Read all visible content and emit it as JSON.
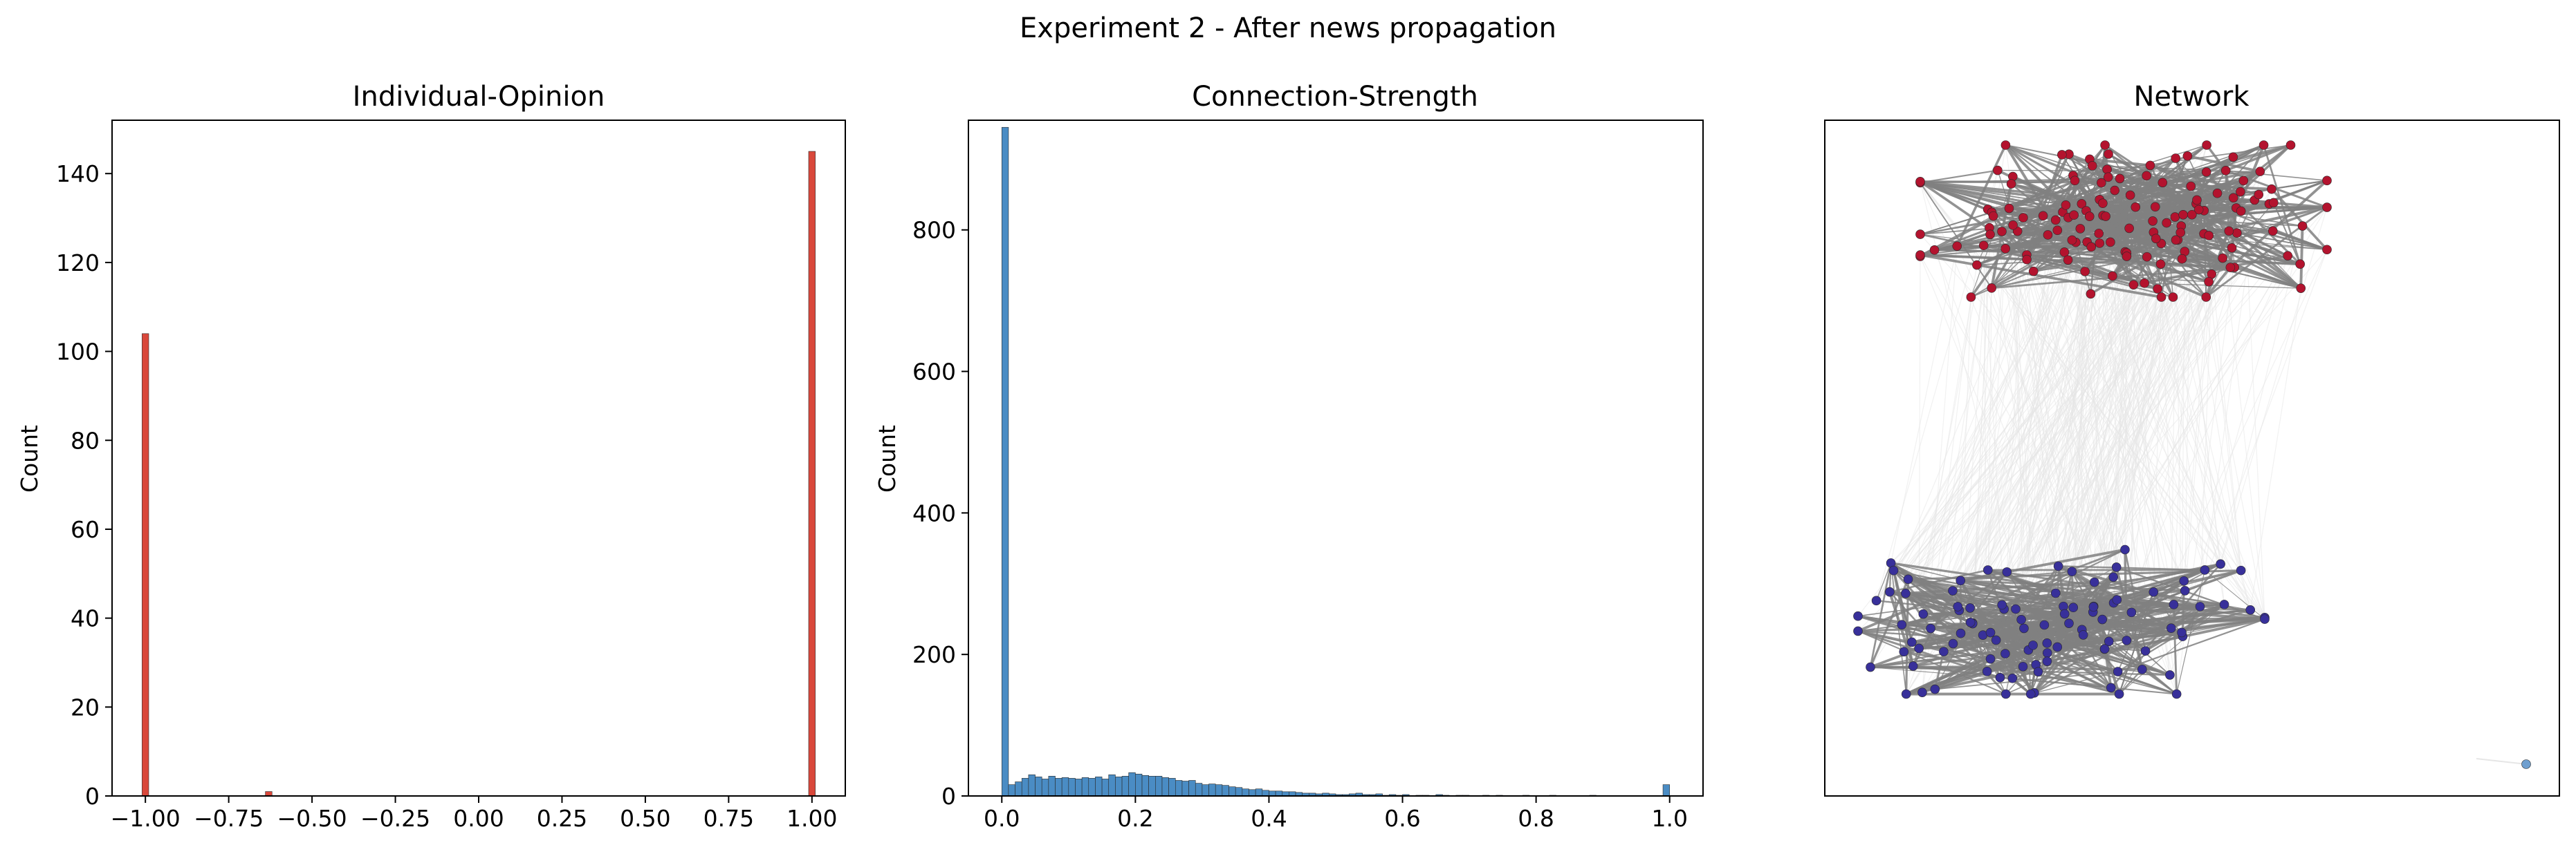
{
  "figure": {
    "suptitle": "Experiment 2 - After news propagation"
  },
  "chart_data": [
    {
      "type": "bar",
      "title": "Individual-Opinion",
      "xlabel": "",
      "ylabel": "Count",
      "xlim": [
        -1.1,
        1.1
      ],
      "ylim": [
        0,
        152
      ],
      "xticks": [
        -1.0,
        -0.75,
        -0.5,
        -0.25,
        0.0,
        0.25,
        0.5,
        0.75,
        1.0
      ],
      "xtick_labels": [
        "−1.00",
        "−0.75",
        "−0.50",
        "−0.25",
        "0.00",
        "0.25",
        "0.50",
        "0.75",
        "1.00"
      ],
      "yticks": [
        0,
        20,
        40,
        60,
        80,
        100,
        120,
        140
      ],
      "bin_width": 0.02,
      "bins": [
        {
          "x": -1.0,
          "count": 104
        },
        {
          "x": -0.63,
          "count": 1
        },
        {
          "x": 1.0,
          "count": 145
        }
      ],
      "color": "#d9483b",
      "grid": false
    },
    {
      "type": "bar",
      "title": "Connection-Strength",
      "xlabel": "",
      "ylabel": "Count",
      "xlim": [
        -0.05,
        1.05
      ],
      "ylim": [
        0,
        955
      ],
      "xticks": [
        0.0,
        0.2,
        0.4,
        0.6,
        0.8,
        1.0
      ],
      "xtick_labels": [
        "0.0",
        "0.2",
        "0.4",
        "0.6",
        "0.8",
        "1.0"
      ],
      "yticks": [
        0,
        200,
        400,
        600,
        800
      ],
      "bin_width": 0.01,
      "bin_start": 0.0,
      "counts": [
        945,
        16,
        20,
        25,
        30,
        27,
        24,
        28,
        25,
        26,
        25,
        24,
        26,
        25,
        27,
        24,
        30,
        27,
        28,
        33,
        31,
        29,
        28,
        28,
        26,
        25,
        22,
        21,
        22,
        18,
        16,
        17,
        16,
        15,
        13,
        12,
        10,
        9,
        10,
        8,
        7,
        7,
        6,
        6,
        5,
        4,
        4,
        3,
        4,
        3,
        2,
        2,
        3,
        4,
        2,
        2,
        3,
        1,
        2,
        1,
        2,
        0,
        1,
        1,
        0,
        2,
        1,
        0,
        1,
        1,
        0,
        0,
        1,
        0,
        1,
        0,
        0,
        0,
        1,
        0,
        0,
        0,
        1,
        0,
        0,
        0,
        0,
        0,
        1,
        0,
        0,
        0,
        0,
        0,
        0,
        0,
        0,
        0,
        0,
        16
      ],
      "color": "#4a8cc4",
      "grid": false
    },
    {
      "type": "network",
      "title": "Network",
      "clusters": [
        {
          "opinion": 1,
          "nodes": 145,
          "color": "#b3132e"
        },
        {
          "opinion": -1,
          "nodes": 104,
          "color": "#38309a"
        },
        {
          "opinion": -0.63,
          "nodes": 1,
          "color": "#6f9fcf"
        }
      ],
      "edge_color": "#808080",
      "weak_edge_color": "#e6e6e6",
      "axis_ticks": false
    }
  ]
}
